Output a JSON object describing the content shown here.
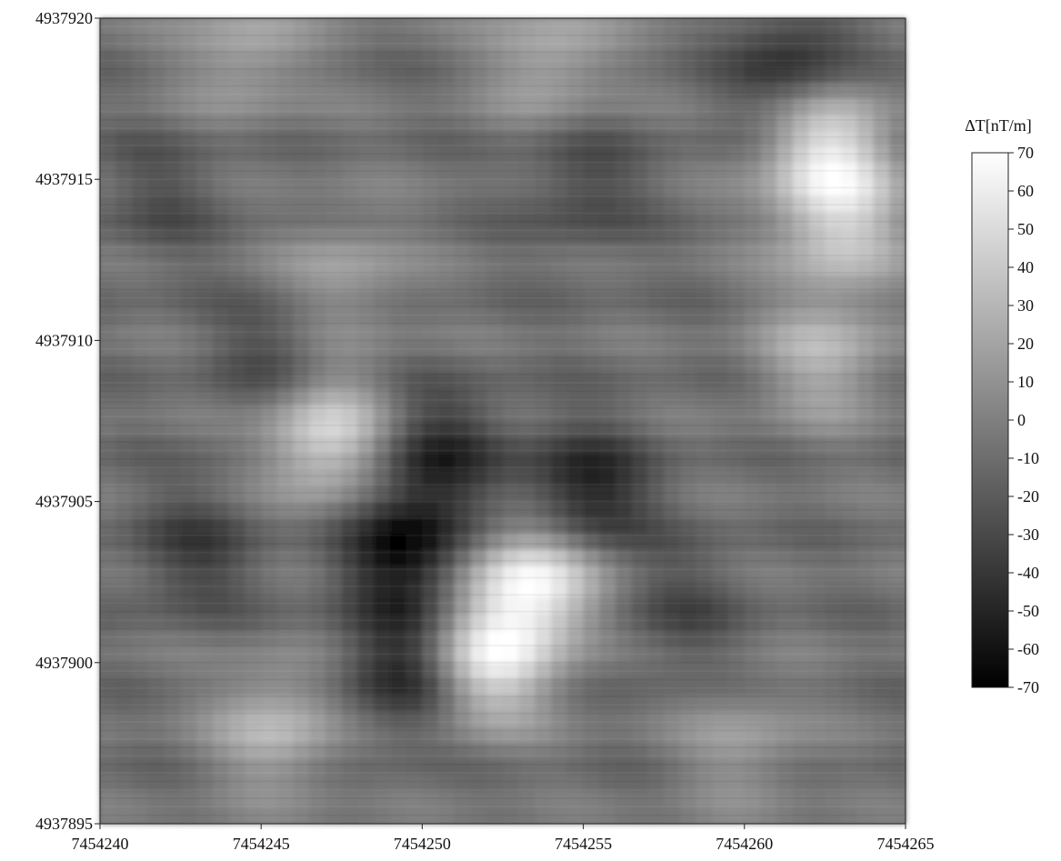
{
  "chart_data": {
    "type": "heatmap",
    "colorbar": {
      "label": "ΔT[nT/m]",
      "min": -70,
      "max": 70,
      "ticks": [
        "70",
        "60",
        "50",
        "40",
        "30",
        "20",
        "10",
        "0",
        "-10",
        "-20",
        "-30",
        "-40",
        "-50",
        "-60",
        "-70"
      ],
      "colormap": [
        "#000000",
        "#ffffff"
      ],
      "placement": "right"
    },
    "x_axis": {
      "range": [
        7454240,
        7454265
      ],
      "ticks": [
        "7454240",
        "7454245",
        "7454250",
        "7454255",
        "7454260",
        "7454265"
      ]
    },
    "y_axis": {
      "range": [
        4937895,
        4937920
      ],
      "ticks": [
        "4937920",
        "4937915",
        "4937910",
        "4937905",
        "4937900",
        "4937895"
      ]
    },
    "grid": false,
    "background_value": -8,
    "anomalies": [
      {
        "x": 7454244.5,
        "y": 4937919.0,
        "value": 22
      },
      {
        "x": 7454254.0,
        "y": 4937918.8,
        "value": 25
      },
      {
        "x": 7454261.5,
        "y": 4937918.5,
        "value": -48
      },
      {
        "x": 7454262.5,
        "y": 4937916.0,
        "value": 55
      },
      {
        "x": 7454263.0,
        "y": 4937913.5,
        "value": 38
      },
      {
        "x": 7454247.5,
        "y": 4937912.0,
        "value": 18
      },
      {
        "x": 7454262.5,
        "y": 4937909.5,
        "value": 28
      },
      {
        "x": 7454247.0,
        "y": 4937907.0,
        "value": 50
      },
      {
        "x": 7454253.5,
        "y": 4937902.5,
        "value": 68
      },
      {
        "x": 7454252.0,
        "y": 4937900.0,
        "value": 55
      },
      {
        "x": 7454249.5,
        "y": 4937903.5,
        "value": -62
      },
      {
        "x": 7454249.5,
        "y": 4937899.8,
        "value": -52
      },
      {
        "x": 7454250.5,
        "y": 4937906.5,
        "value": -45
      },
      {
        "x": 7454255.0,
        "y": 4937905.2,
        "value": -58
      },
      {
        "x": 7454245.5,
        "y": 4937898.0,
        "value": 30
      },
      {
        "x": 7454243.0,
        "y": 4937903.5,
        "value": -35
      },
      {
        "x": 7454245.5,
        "y": 4937909.5,
        "value": -32
      },
      {
        "x": 7454258.0,
        "y": 4937901.5,
        "value": -28
      },
      {
        "x": 7454260.0,
        "y": 4937897.5,
        "value": 15
      },
      {
        "x": 7454255.0,
        "y": 4937914.8,
        "value": -30
      },
      {
        "x": 7454242.0,
        "y": 4937914.5,
        "value": -25
      }
    ]
  }
}
